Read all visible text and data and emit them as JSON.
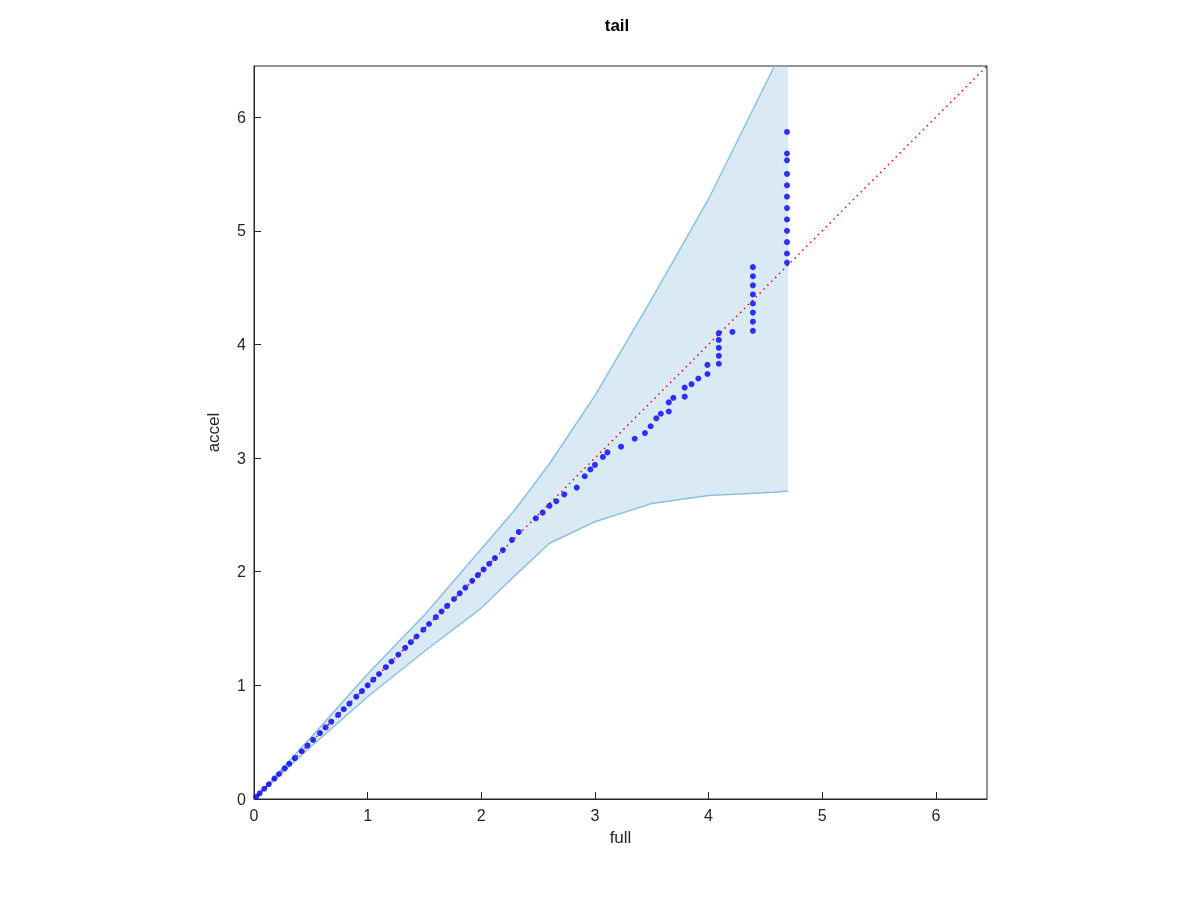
{
  "chart_data": {
    "type": "scatter",
    "title": "tail",
    "xlabel": "full",
    "ylabel": "accel",
    "xlim": [
      0,
      6.45
    ],
    "ylim": [
      0,
      6.45
    ],
    "xticks": [
      0,
      1,
      2,
      3,
      4,
      5,
      6
    ],
    "yticks": [
      0,
      1,
      2,
      3,
      4,
      5,
      6
    ],
    "grid": false,
    "marker": "circle",
    "series": [
      {
        "type": "line",
        "color": "#8cc0e0",
        "marker": "none",
        "x": [
          0,
          0.5,
          1.0,
          1.5,
          2.0,
          2.3,
          2.6,
          3.0,
          3.5,
          4.0,
          4.58,
          4.7
        ],
        "values": [
          0,
          0.54,
          1.1,
          1.62,
          2.2,
          2.55,
          2.95,
          3.55,
          4.4,
          5.28,
          6.45,
          null
        ],
        "upper": [
          0,
          0.54,
          1.1,
          1.62,
          2.2,
          2.55,
          2.95,
          3.55,
          4.4,
          5.28,
          6.45,
          6.45
        ],
        "lower": [
          0,
          0.46,
          0.9,
          1.3,
          1.68,
          1.97,
          2.25,
          2.44,
          2.6,
          2.67,
          2.7,
          2.71
        ]
      },
      {
        "type": "line",
        "color": "#8cc0e0",
        "marker": "none",
        "x": [
          0,
          0.5,
          1.0,
          1.5,
          2.0,
          2.3,
          2.6,
          3.0,
          3.5,
          4.0,
          4.58,
          4.7
        ],
        "values": [
          0,
          0.46,
          0.9,
          1.3,
          1.68,
          1.97,
          2.25,
          2.44,
          2.6,
          2.67,
          2.7,
          2.71
        ]
      },
      {
        "type": "line",
        "color": "#ff0000",
        "line_style": "dotted",
        "marker": "none",
        "x": [
          0,
          6.45
        ],
        "values": [
          0,
          6.45
        ]
      },
      {
        "color": "#0000ff",
        "x": [
          0.02,
          0.05,
          0.09,
          0.13,
          0.18,
          0.22,
          0.27,
          0.31,
          0.36,
          0.42,
          0.47,
          0.52,
          0.58,
          0.63,
          0.68,
          0.74,
          0.79,
          0.84,
          0.9,
          0.95,
          1.0,
          1.05,
          1.1,
          1.16,
          1.21,
          1.27,
          1.33,
          1.38,
          1.43,
          1.49,
          1.54,
          1.6,
          1.65,
          1.7,
          1.76,
          1.81,
          1.86,
          1.92,
          1.97,
          2.02,
          2.07,
          2.12,
          2.19,
          2.27,
          2.33,
          2.48,
          2.54,
          2.6,
          2.66,
          2.73,
          2.84,
          2.91,
          2.96,
          3.0,
          3.07,
          3.11,
          3.23,
          3.35,
          3.44,
          3.49,
          3.54,
          3.58,
          3.65,
          3.65,
          3.69,
          3.79,
          3.79,
          3.85,
          3.91,
          3.99,
          3.99,
          4.09,
          4.09,
          4.09,
          4.09,
          4.09,
          4.21,
          4.39,
          4.39,
          4.39,
          4.39,
          4.39,
          4.39,
          4.39,
          4.39,
          4.69,
          4.69,
          4.69,
          4.69,
          4.69,
          4.69,
          4.69,
          4.69,
          4.69,
          4.69,
          4.69,
          4.69
        ],
        "values": [
          0.02,
          0.05,
          0.09,
          0.13,
          0.18,
          0.22,
          0.27,
          0.31,
          0.36,
          0.42,
          0.47,
          0.52,
          0.58,
          0.63,
          0.68,
          0.74,
          0.79,
          0.84,
          0.9,
          0.95,
          1.0,
          1.05,
          1.1,
          1.16,
          1.21,
          1.27,
          1.33,
          1.38,
          1.43,
          1.49,
          1.54,
          1.6,
          1.65,
          1.7,
          1.76,
          1.81,
          1.86,
          1.92,
          1.97,
          2.02,
          2.07,
          2.12,
          2.19,
          2.28,
          2.35,
          2.47,
          2.52,
          2.58,
          2.62,
          2.68,
          2.74,
          2.84,
          2.9,
          2.94,
          3.01,
          3.05,
          3.1,
          3.17,
          3.22,
          3.28,
          3.35,
          3.39,
          3.41,
          3.49,
          3.53,
          3.54,
          3.62,
          3.65,
          3.7,
          3.74,
          3.82,
          3.83,
          3.9,
          3.97,
          4.04,
          4.1,
          4.11,
          4.12,
          4.2,
          4.28,
          4.36,
          4.44,
          4.52,
          4.6,
          4.68,
          4.72,
          4.8,
          4.9,
          5.0,
          5.1,
          5.2,
          5.3,
          5.4,
          5.5,
          5.62,
          5.68,
          5.87
        ]
      }
    ]
  }
}
